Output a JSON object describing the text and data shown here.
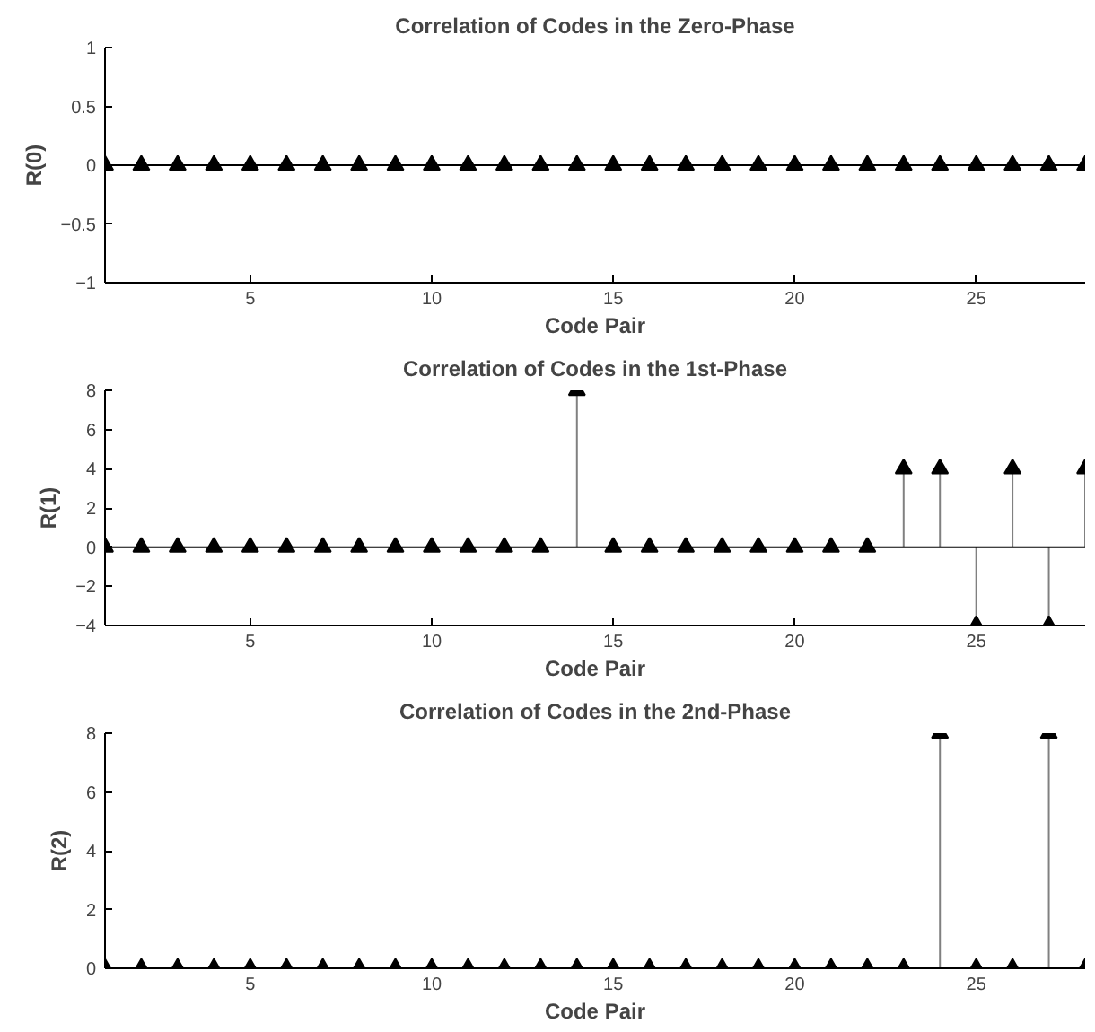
{
  "chart_data": [
    {
      "type": "lollipop",
      "title": "Correlation of Codes in the Zero-Phase",
      "xlabel": "Code Pair",
      "ylabel": "R(0)",
      "marker": "triangle",
      "grid": false,
      "x": [
        1,
        2,
        3,
        4,
        5,
        6,
        7,
        8,
        9,
        10,
        11,
        12,
        13,
        14,
        15,
        16,
        17,
        18,
        19,
        20,
        21,
        22,
        23,
        24,
        25,
        26,
        27,
        28
      ],
      "series": [
        {
          "color": "#000000",
          "values": [
            0,
            0,
            0,
            0,
            0,
            0,
            0,
            0,
            0,
            0,
            0,
            0,
            0,
            0,
            0,
            0,
            0,
            0,
            0,
            0,
            0,
            0,
            0,
            0,
            0,
            0,
            0,
            0
          ]
        }
      ],
      "xlim": [
        1,
        28
      ],
      "xticks": [
        5,
        10,
        15,
        20,
        25
      ],
      "ylim": [
        -1,
        1
      ],
      "yticks": [
        -1,
        -0.5,
        0,
        0.5,
        1
      ],
      "ref_lines": [
        {
          "axis": "y",
          "value": 0,
          "label": null,
          "color": "#000000"
        }
      ]
    },
    {
      "type": "lollipop",
      "title": "Correlation of Codes in the 1st-Phase",
      "xlabel": "Code Pair",
      "ylabel": "R(1)",
      "marker": "triangle",
      "grid": false,
      "x": [
        1,
        2,
        3,
        4,
        5,
        6,
        7,
        8,
        9,
        10,
        11,
        12,
        13,
        14,
        15,
        16,
        17,
        18,
        19,
        20,
        21,
        22,
        23,
        24,
        25,
        26,
        27,
        28
      ],
      "series": [
        {
          "color": "#000000",
          "values": [
            0,
            0,
            0,
            0,
            0,
            0,
            0,
            0,
            0,
            0,
            0,
            0,
            0,
            8,
            0,
            0,
            0,
            0,
            0,
            0,
            0,
            0,
            4,
            4,
            -4,
            4,
            -4,
            4
          ]
        }
      ],
      "xlim": [
        1,
        28
      ],
      "xticks": [
        5,
        10,
        15,
        20,
        25
      ],
      "ylim": [
        -4,
        8
      ],
      "yticks": [
        -4,
        -2,
        0,
        2,
        4,
        6,
        8
      ],
      "ref_lines": [
        {
          "axis": "y",
          "value": 0,
          "label": null,
          "color": "#000000"
        }
      ]
    },
    {
      "type": "lollipop",
      "title": "Correlation of Codes in the 2nd-Phase",
      "xlabel": "Code Pair",
      "ylabel": "R(2)",
      "marker": "triangle",
      "grid": false,
      "x": [
        1,
        2,
        3,
        4,
        5,
        6,
        7,
        8,
        9,
        10,
        11,
        12,
        13,
        14,
        15,
        16,
        17,
        18,
        19,
        20,
        21,
        22,
        23,
        24,
        25,
        26,
        27,
        28
      ],
      "series": [
        {
          "color": "#000000",
          "values": [
            0,
            0,
            0,
            0,
            0,
            0,
            0,
            0,
            0,
            0,
            0,
            0,
            0,
            0,
            0,
            0,
            0,
            0,
            0,
            0,
            0,
            0,
            0,
            8,
            0,
            0,
            8,
            0
          ]
        }
      ],
      "xlim": [
        1,
        28
      ],
      "xticks": [
        5,
        10,
        15,
        20,
        25
      ],
      "ylim": [
        0,
        8
      ],
      "yticks": [
        0,
        2,
        4,
        6,
        8
      ]
    }
  ]
}
